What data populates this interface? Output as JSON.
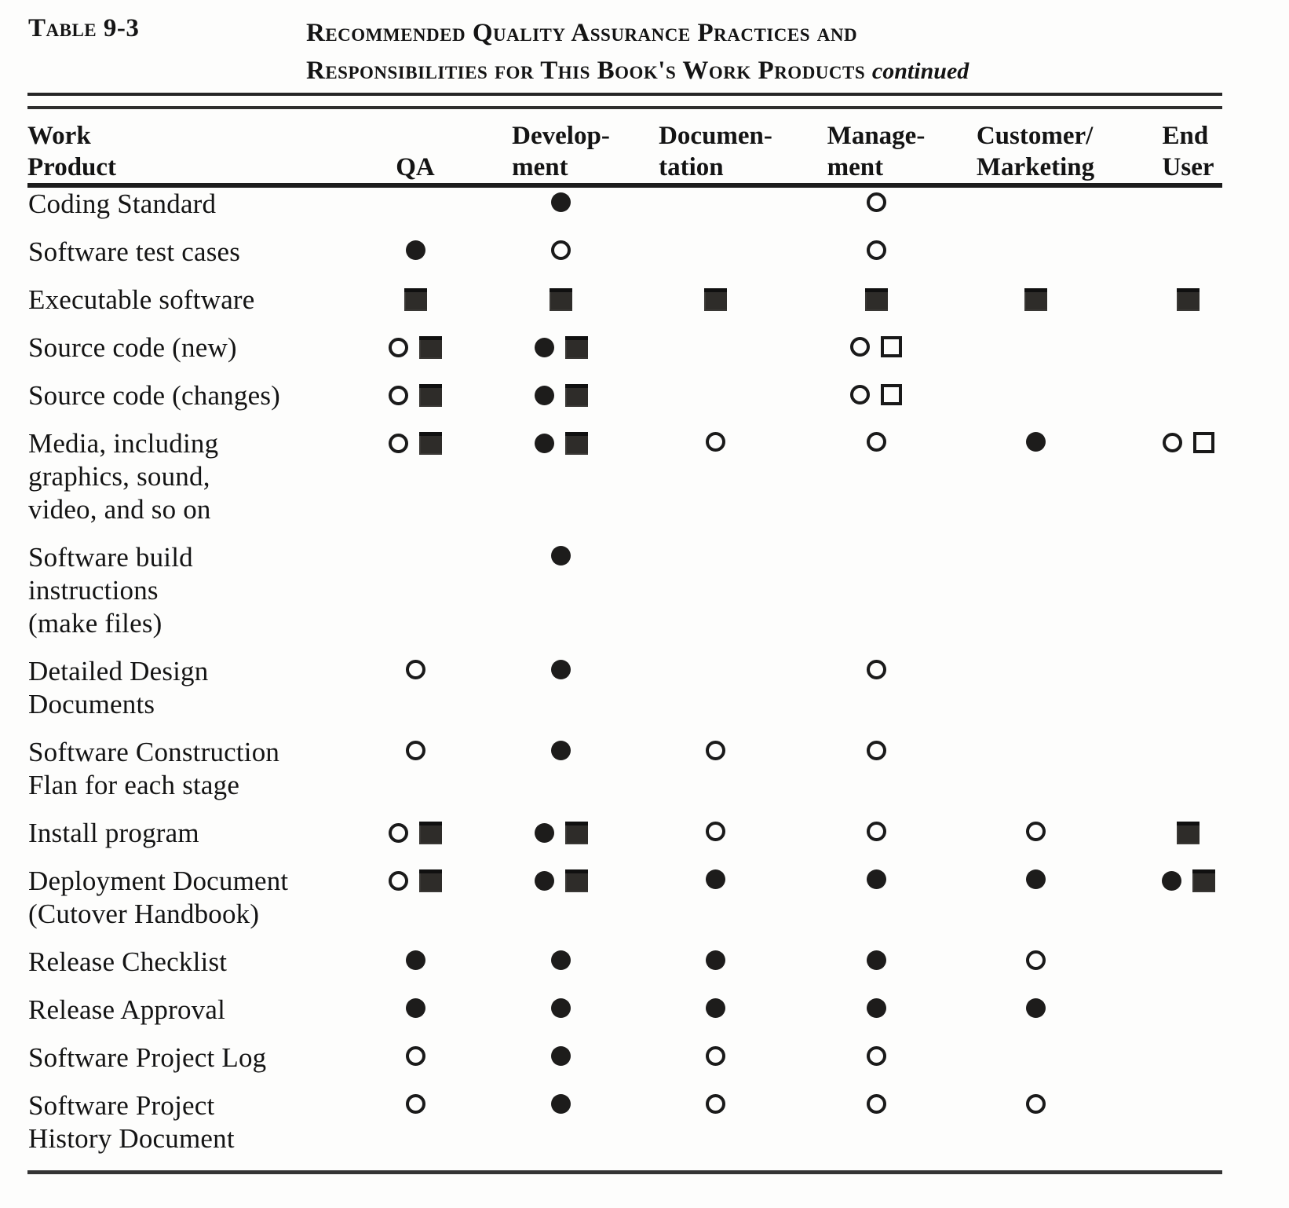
{
  "colors": {
    "ink": "#141414",
    "paper": "#fdfdfc",
    "rule": "#262626"
  },
  "symbols_legend": {
    "filled-circle": "●",
    "open-circle": "○",
    "filled-square": "■",
    "open-square": "□"
  },
  "table": {
    "label": "Table 9-3",
    "title_line1": "Recommended Quality Assurance Practices and",
    "title_line2": "Responsibilities for This Book's Work Products",
    "title_continued": "continued",
    "column_keys": [
      "qa",
      "development",
      "documentation",
      "management",
      "customer-marketing",
      "end-user"
    ],
    "columns": [
      {
        "line1": "Work",
        "line2": "Product"
      },
      {
        "line1": "",
        "line2": "QA"
      },
      {
        "line1": "Develop-",
        "line2": "ment"
      },
      {
        "line1": "Documen-",
        "line2": "tation"
      },
      {
        "line1": "Manage-",
        "line2": "ment"
      },
      {
        "line1": "Customer/",
        "line2": "Marketing"
      },
      {
        "line1": "End",
        "line2": "User"
      }
    ],
    "rows": [
      {
        "label_lines": [
          "Coding Standard"
        ],
        "cells": [
          [],
          [
            "filled-circle"
          ],
          [],
          [
            "open-circle"
          ],
          [],
          []
        ]
      },
      {
        "label_lines": [
          "Software test cases"
        ],
        "cells": [
          [
            "filled-circle"
          ],
          [
            "open-circle"
          ],
          [],
          [
            "open-circle"
          ],
          [],
          []
        ]
      },
      {
        "label_lines": [
          "Executable software"
        ],
        "cells": [
          [
            "filled-square"
          ],
          [
            "filled-square"
          ],
          [
            "filled-square"
          ],
          [
            "filled-square"
          ],
          [
            "filled-square"
          ],
          [
            "filled-square"
          ]
        ]
      },
      {
        "label_lines": [
          "Source code (new)"
        ],
        "cells": [
          [
            "open-circle",
            "filled-square"
          ],
          [
            "filled-circle",
            "filled-square"
          ],
          [],
          [
            "open-circle",
            "open-square"
          ],
          [],
          []
        ]
      },
      {
        "label_lines": [
          "Source code (changes)"
        ],
        "cells": [
          [
            "open-circle",
            "filled-square"
          ],
          [
            "filled-circle",
            "filled-square"
          ],
          [],
          [
            "open-circle",
            "open-square"
          ],
          [],
          []
        ]
      },
      {
        "label_lines": [
          "Media, including",
          "graphics, sound,",
          "video, and so on"
        ],
        "cells": [
          [
            "open-circle",
            "filled-square"
          ],
          [
            "filled-circle",
            "filled-square"
          ],
          [
            "open-circle"
          ],
          [
            "open-circle"
          ],
          [
            "filled-circle"
          ],
          [
            "open-circle",
            "open-square"
          ]
        ]
      },
      {
        "label_lines": [
          "Software build",
          "instructions",
          "(make files)"
        ],
        "cells": [
          [],
          [
            "filled-circle"
          ],
          [],
          [],
          [],
          []
        ]
      },
      {
        "label_lines": [
          "Detailed Design",
          "Documents"
        ],
        "cells": [
          [
            "open-circle"
          ],
          [
            "filled-circle"
          ],
          [],
          [
            "open-circle"
          ],
          [],
          []
        ]
      },
      {
        "label_lines": [
          "Software Construction",
          "Flan for each stage"
        ],
        "cells": [
          [
            "open-circle"
          ],
          [
            "filled-circle"
          ],
          [
            "open-circle"
          ],
          [
            "open-circle"
          ],
          [],
          []
        ]
      },
      {
        "label_lines": [
          "Install program"
        ],
        "cells": [
          [
            "open-circle",
            "filled-square"
          ],
          [
            "filled-circle",
            "filled-square"
          ],
          [
            "open-circle"
          ],
          [
            "open-circle"
          ],
          [
            "open-circle"
          ],
          [
            "filled-square"
          ]
        ]
      },
      {
        "label_lines": [
          "Deployment Document",
          "(Cutover Handbook)"
        ],
        "cells": [
          [
            "open-circle",
            "filled-square"
          ],
          [
            "filled-circle",
            "filled-square"
          ],
          [
            "filled-circle"
          ],
          [
            "filled-circle"
          ],
          [
            "filled-circle"
          ],
          [
            "filled-circle",
            "filled-square"
          ]
        ]
      },
      {
        "label_lines": [
          "Release Checklist"
        ],
        "cells": [
          [
            "filled-circle"
          ],
          [
            "filled-circle"
          ],
          [
            "filled-circle"
          ],
          [
            "filled-circle"
          ],
          [
            "open-circle"
          ],
          []
        ]
      },
      {
        "label_lines": [
          "Release Approval"
        ],
        "cells": [
          [
            "filled-circle"
          ],
          [
            "filled-circle"
          ],
          [
            "filled-circle"
          ],
          [
            "filled-circle"
          ],
          [
            "filled-circle"
          ],
          []
        ]
      },
      {
        "label_lines": [
          "Software Project Log"
        ],
        "cells": [
          [
            "open-circle"
          ],
          [
            "filled-circle"
          ],
          [
            "open-circle"
          ],
          [
            "open-circle"
          ],
          [],
          []
        ]
      },
      {
        "label_lines": [
          "Software Project",
          "History Document"
        ],
        "cells": [
          [
            "open-circle"
          ],
          [
            "filled-circle"
          ],
          [
            "open-circle"
          ],
          [
            "open-circle"
          ],
          [
            "open-circle"
          ],
          []
        ]
      }
    ]
  }
}
